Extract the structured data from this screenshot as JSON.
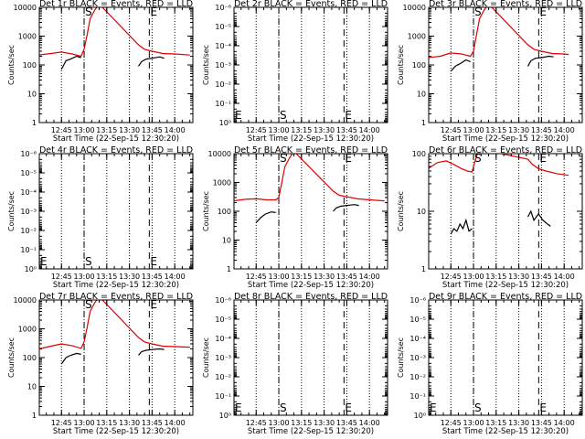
{
  "chart_data": [
    {
      "type": "line",
      "title": "Det 1r BLACK = Events, RED = LLD",
      "xlabel": "Start Time (22-Sep-15 12:30:20)",
      "ylabel": "Counts/sec",
      "y_scale": "log",
      "ylim": [
        1,
        10000
      ],
      "y_ticks": [
        "1",
        "10",
        "100",
        "1000",
        "10000"
      ],
      "x_ticks": [
        "12:45",
        "13:00",
        "13:15",
        "13:30",
        "13:45",
        "14:00"
      ],
      "markers": {
        "S": "13:00",
        "E": "13:48"
      },
      "series": [
        {
          "color": "#000000",
          "points": [
            [
              "12:45",
              70
            ],
            [
              "12:48",
              140
            ],
            [
              "12:51",
              160
            ],
            [
              "12:55",
              200
            ],
            [
              "12:58",
              180
            ],
            [
              "13:00",
              null
            ],
            [
              "13:36",
              90
            ],
            [
              "13:38",
              130
            ],
            [
              "13:41",
              160
            ],
            [
              "13:45",
              170
            ],
            [
              "13:50",
              190
            ],
            [
              "13:53",
              170
            ]
          ]
        },
        {
          "color": "#e00000",
          "points": [
            [
              "12:30",
              220
            ],
            [
              "12:38",
              250
            ],
            [
              "12:45",
              280
            ],
            [
              "12:52",
              240
            ],
            [
              "12:58",
              200
            ],
            [
              "13:00",
              350
            ],
            [
              "13:02",
              1100
            ],
            [
              "13:04",
              4000
            ],
            [
              "13:07",
              8000
            ],
            [
              "13:10",
              13000
            ],
            [
              "13:36",
              500
            ],
            [
              "13:40",
              350
            ],
            [
              "13:45",
              300
            ],
            [
              "13:52",
              250
            ],
            [
              "14:00",
              240
            ],
            [
              "14:10",
              220
            ]
          ]
        }
      ]
    },
    {
      "type": "line",
      "title": "Det 2r BLACK = Events, RED = LLD",
      "xlabel": "Start Time (22-Sep-15 12:30:20)",
      "ylabel": "Counts/sec",
      "y_scale": "log",
      "ylim": [
        1,
        1e-06
      ],
      "y_ticks": [
        "10⁰",
        "10⁻¹",
        "10⁻²",
        "10⁻³",
        "10⁻⁴",
        "10⁻⁵",
        "10⁻⁶"
      ],
      "x_ticks": [
        "12:45",
        "13:00",
        "13:15",
        "13:30",
        "13:45",
        "14:00"
      ],
      "markers": {
        "S": "13:00",
        "E": "13:48"
      },
      "series": []
    },
    {
      "type": "line",
      "title": "Det 3r BLACK = Events, RED = LLD",
      "xlabel": "Start Time (22-Sep-15 12:30:20)",
      "ylabel": "Counts/sec",
      "y_scale": "log",
      "ylim": [
        1,
        10000
      ],
      "y_ticks": [
        "1",
        "10",
        "100",
        "1000",
        "10000"
      ],
      "x_ticks": [
        "12:45",
        "13:00",
        "13:15",
        "13:30",
        "13:45",
        "14:00"
      ],
      "markers": {
        "S": "13:00",
        "E": "13:48"
      },
      "series": [
        {
          "color": "#000000",
          "points": [
            [
              "12:45",
              60
            ],
            [
              "12:48",
              90
            ],
            [
              "12:51",
              110
            ],
            [
              "12:55",
              150
            ],
            [
              "12:58",
              130
            ],
            [
              "13:00",
              null
            ],
            [
              "13:36",
              90
            ],
            [
              "13:38",
              140
            ],
            [
              "13:41",
              170
            ],
            [
              "13:45",
              180
            ],
            [
              "13:50",
              200
            ],
            [
              "13:53",
              190
            ]
          ]
        },
        {
          "color": "#e00000",
          "points": [
            [
              "12:30",
              180
            ],
            [
              "12:38",
              200
            ],
            [
              "12:45",
              260
            ],
            [
              "12:52",
              240
            ],
            [
              "12:58",
              200
            ],
            [
              "13:00",
              300
            ],
            [
              "13:02",
              1100
            ],
            [
              "13:04",
              4000
            ],
            [
              "13:07",
              8000
            ],
            [
              "13:10",
              13000
            ],
            [
              "13:36",
              500
            ],
            [
              "13:40",
              350
            ],
            [
              "13:45",
              300
            ],
            [
              "13:52",
              250
            ],
            [
              "14:00",
              240
            ],
            [
              "14:03",
              230
            ]
          ]
        }
      ]
    },
    {
      "type": "line",
      "title": "Det 4r BLACK = Events, RED = LLD",
      "xlabel": "Start Time (22-Sep-15 12:30:20)",
      "ylabel": "Counts/sec",
      "y_scale": "log",
      "ylim": [
        1,
        1e-06
      ],
      "y_ticks": [
        "10⁰",
        "10⁻¹",
        "10⁻²",
        "10⁻³",
        "10⁻⁴",
        "10⁻⁵",
        "10⁻⁶"
      ],
      "x_ticks": [
        "12:45",
        "13:00",
        "13:15",
        "13:30",
        "13:45",
        "14:00"
      ],
      "markers": {
        "S": "13:00",
        "E": "13:48"
      },
      "series": []
    },
    {
      "type": "line",
      "title": "Det 5r BLACK = Events, RED = LLD",
      "xlabel": "Start Time (22-Sep-15 12:30:20)",
      "ylabel": "Counts/sec",
      "y_scale": "log",
      "ylim": [
        1,
        10000
      ],
      "y_ticks": [
        "1",
        "10",
        "100",
        "1000",
        "10000"
      ],
      "x_ticks": [
        "12:45",
        "13:00",
        "13:15",
        "13:30",
        "13:45",
        "14:00"
      ],
      "markers": {
        "S": "13:00",
        "E": "13:48"
      },
      "series": [
        {
          "color": "#000000",
          "points": [
            [
              "12:45",
              40
            ],
            [
              "12:48",
              60
            ],
            [
              "12:51",
              80
            ],
            [
              "12:55",
              95
            ],
            [
              "12:58",
              90
            ],
            [
              "13:00",
              null
            ],
            [
              "13:36",
              100
            ],
            [
              "13:38",
              130
            ],
            [
              "13:41",
              150
            ],
            [
              "13:45",
              160
            ],
            [
              "13:50",
              170
            ],
            [
              "13:53",
              160
            ]
          ]
        },
        {
          "color": "#e00000",
          "points": [
            [
              "12:30",
              230
            ],
            [
              "12:38",
              260
            ],
            [
              "12:45",
              270
            ],
            [
              "12:52",
              250
            ],
            [
              "12:58",
              250
            ],
            [
              "13:00",
              300
            ],
            [
              "13:02",
              1000
            ],
            [
              "13:04",
              3500
            ],
            [
              "13:07",
              7000
            ],
            [
              "13:10",
              12000
            ],
            [
              "13:36",
              500
            ],
            [
              "13:40",
              360
            ],
            [
              "13:45",
              320
            ],
            [
              "13:52",
              270
            ],
            [
              "14:00",
              250
            ],
            [
              "14:10",
              230
            ]
          ]
        }
      ]
    },
    {
      "type": "line",
      "title": "Det 6r BLACK = Events, RED = LLD",
      "xlabel": "Start Time (22-Sep-15 12:30:20)",
      "ylabel": "Counts/sec",
      "y_scale": "log",
      "ylim": [
        1,
        100
      ],
      "y_ticks": [
        "1",
        "10",
        "100"
      ],
      "x_ticks": [
        "12:45",
        "13:00",
        "13:15",
        "13:30",
        "13:45",
        "14:00"
      ],
      "markers": {
        "S": "13:00",
        "E": "13:48"
      },
      "series": [
        {
          "color": "#000000",
          "points": [
            [
              "12:45",
              4
            ],
            [
              "12:47",
              5
            ],
            [
              "12:49",
              4.5
            ],
            [
              "12:51",
              6
            ],
            [
              "12:53",
              5
            ],
            [
              "12:55",
              7
            ],
            [
              "12:57",
              4.5
            ],
            [
              "12:59",
              5
            ],
            [
              "13:00",
              null
            ],
            [
              "13:36",
              8
            ],
            [
              "13:38",
              10
            ],
            [
              "13:40",
              7
            ],
            [
              "13:43",
              9
            ],
            [
              "13:46",
              7
            ],
            [
              "13:49",
              6
            ],
            [
              "13:51",
              5.5
            ]
          ]
        },
        {
          "color": "#e00000",
          "points": [
            [
              "12:30",
              55
            ],
            [
              "12:36",
              70
            ],
            [
              "12:42",
              75
            ],
            [
              "12:47",
              65
            ],
            [
              "12:52",
              55
            ],
            [
              "12:56",
              50
            ],
            [
              "12:59",
              48
            ],
            [
              "13:00",
              60
            ],
            [
              "13:02",
              90
            ],
            [
              "13:04",
              120
            ],
            [
              "13:36",
              80
            ],
            [
              "13:39",
              65
            ],
            [
              "13:43",
              55
            ],
            [
              "13:48",
              50
            ],
            [
              "13:55",
              45
            ],
            [
              "14:03",
              42
            ]
          ]
        }
      ]
    },
    {
      "type": "line",
      "title": "Det 7r BLACK = Events, RED = LLD",
      "xlabel": "Start Time (22-Sep-15 12:30:20)",
      "ylabel": "Counts/sec",
      "y_scale": "log",
      "ylim": [
        1,
        10000
      ],
      "y_ticks": [
        "1",
        "10",
        "100",
        "1000",
        "10000"
      ],
      "x_ticks": [
        "12:45",
        "13:00",
        "13:15",
        "13:30",
        "13:45",
        "14:00"
      ],
      "markers": {
        "S": "13:00",
        "E": "13:48"
      },
      "series": [
        {
          "color": "#000000",
          "points": [
            [
              "12:45",
              60
            ],
            [
              "12:48",
              100
            ],
            [
              "12:51",
              120
            ],
            [
              "12:55",
              140
            ],
            [
              "12:58",
              130
            ],
            [
              "13:00",
              null
            ],
            [
              "13:36",
              120
            ],
            [
              "13:38",
              160
            ],
            [
              "13:41",
              180
            ],
            [
              "13:45",
              190
            ],
            [
              "13:50",
              200
            ],
            [
              "13:53",
              190
            ]
          ]
        },
        {
          "color": "#e00000",
          "points": [
            [
              "12:30",
              200
            ],
            [
              "12:38",
              250
            ],
            [
              "12:45",
              300
            ],
            [
              "12:52",
              260
            ],
            [
              "12:58",
              210
            ],
            [
              "13:00",
              350
            ],
            [
              "13:02",
              1100
            ],
            [
              "13:04",
              4000
            ],
            [
              "13:07",
              8000
            ],
            [
              "13:10",
              13000
            ],
            [
              "13:36",
              500
            ],
            [
              "13:40",
              350
            ],
            [
              "13:45",
              300
            ],
            [
              "13:52",
              250
            ],
            [
              "14:00",
              240
            ],
            [
              "14:10",
              230
            ]
          ]
        }
      ]
    },
    {
      "type": "line",
      "title": "Det 8r BLACK = Events, RED = LLD",
      "xlabel": "Start Time (22-Sep-15 12:30:20)",
      "ylabel": "Counts/sec",
      "y_scale": "log",
      "ylim": [
        1,
        1e-06
      ],
      "y_ticks": [
        "10⁰",
        "10⁻¹",
        "10⁻²",
        "10⁻³",
        "10⁻⁴",
        "10⁻⁵",
        "10⁻⁶"
      ],
      "x_ticks": [
        "12:45",
        "13:00",
        "13:15",
        "13:30",
        "13:45",
        "14:00"
      ],
      "markers": {
        "S": "13:00",
        "E": "13:48"
      },
      "series": []
    },
    {
      "type": "line",
      "title": "Det 9r BLACK = Events, RED = LLD",
      "xlabel": "Start Time (22-Sep-15 12:30:20)",
      "ylabel": "Counts/sec",
      "y_scale": "log",
      "ylim": [
        1,
        1e-06
      ],
      "y_ticks": [
        "10⁰",
        "10⁻¹",
        "10⁻²",
        "10⁻³",
        "10⁻⁴",
        "10⁻⁵",
        "10⁻⁶"
      ],
      "x_ticks": [
        "12:45",
        "13:00",
        "13:15",
        "13:30",
        "13:45",
        "14:00"
      ],
      "markers": {
        "S": "13:00",
        "E": "13:48"
      },
      "series": []
    }
  ]
}
